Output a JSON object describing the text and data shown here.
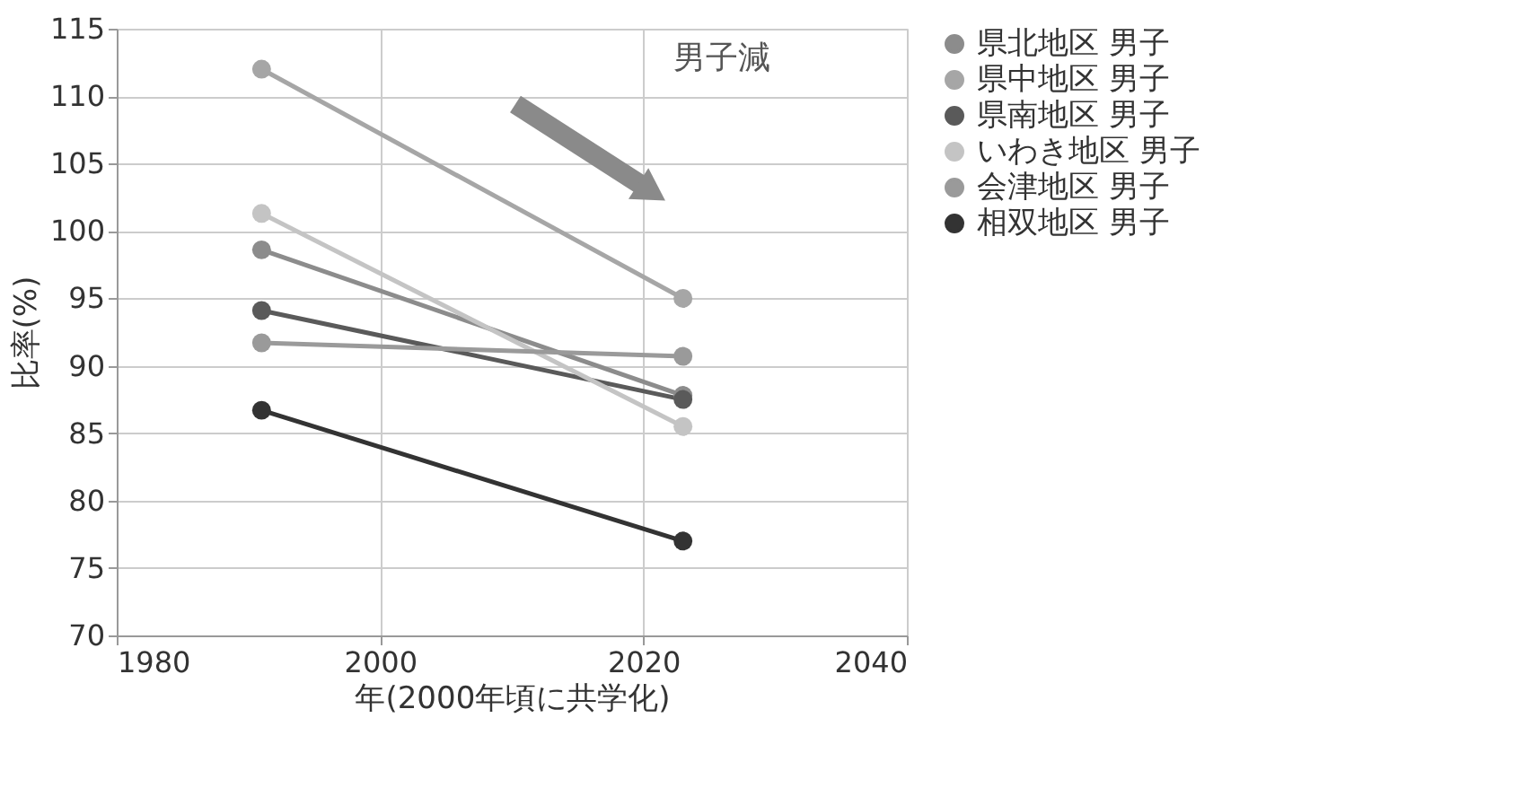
{
  "chart_data": {
    "type": "line",
    "xlabel": "年(2000年頃に共学化)",
    "ylabel": "比率(%)",
    "x": [
      1991,
      2023
    ],
    "series": [
      {
        "name": "県北地区 男子",
        "color": "#8c8c8c",
        "values": [
          98.6,
          87.8
        ]
      },
      {
        "name": "県中地区 男子",
        "color": "#a6a6a6",
        "values": [
          112,
          95
        ]
      },
      {
        "name": "県南地区 男子",
        "color": "#5a5a5a",
        "values": [
          94.1,
          87.5
        ]
      },
      {
        "name": "いわき地区 男子",
        "color": "#c4c4c4",
        "values": [
          101.3,
          85.5
        ]
      },
      {
        "name": "会津地区 男子",
        "color": "#9a9a9a",
        "values": [
          91.7,
          90.7
        ]
      },
      {
        "name": "相双地区 男子",
        "color": "#333333",
        "values": [
          86.7,
          77
        ]
      }
    ],
    "xlim": [
      1980,
      2040
    ],
    "xticks": [
      1980,
      2000,
      2020,
      2040
    ],
    "ylim": [
      70,
      115
    ],
    "yticks": [
      70,
      75,
      80,
      85,
      90,
      95,
      100,
      105,
      110,
      115
    ],
    "grid": true,
    "legend": "right",
    "marker": "circle",
    "line_style": "solid",
    "annotations": [
      "男子減"
    ]
  }
}
